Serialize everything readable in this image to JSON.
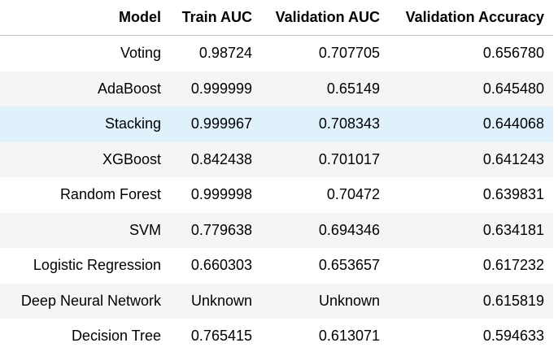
{
  "table": {
    "columns": [
      "Model",
      "Train AUC",
      "Validation AUC",
      "Validation Accuracy"
    ],
    "rows": [
      {
        "model": "Voting",
        "train_auc": "0.98724",
        "validation_auc": "0.707705",
        "validation_accuracy": "0.656780"
      },
      {
        "model": "AdaBoost",
        "train_auc": "0.999999",
        "validation_auc": "0.65149",
        "validation_accuracy": "0.645480"
      },
      {
        "model": "Stacking",
        "train_auc": "0.999967",
        "validation_auc": "0.708343",
        "validation_accuracy": "0.644068"
      },
      {
        "model": "XGBoost",
        "train_auc": "0.842438",
        "validation_auc": "0.701017",
        "validation_accuracy": "0.641243"
      },
      {
        "model": "Random Forest",
        "train_auc": "0.999998",
        "validation_auc": "0.70472",
        "validation_accuracy": "0.639831"
      },
      {
        "model": "SVM",
        "train_auc": "0.779638",
        "validation_auc": "0.694346",
        "validation_accuracy": "0.634181"
      },
      {
        "model": "Logistic Regression",
        "train_auc": "0.660303",
        "validation_auc": "0.653657",
        "validation_accuracy": "0.617232"
      },
      {
        "model": "Deep Neural Network",
        "train_auc": "Unknown",
        "validation_auc": "Unknown",
        "validation_accuracy": "0.615819"
      },
      {
        "model": "Decision Tree",
        "train_auc": "0.765415",
        "validation_auc": "0.613071",
        "validation_accuracy": "0.594633"
      }
    ],
    "hovered_row": "Stacking"
  },
  "colors": {
    "stripe": "#f5f5f5",
    "hover": "#dff1fb",
    "header_rule": "#bfbfbf"
  }
}
